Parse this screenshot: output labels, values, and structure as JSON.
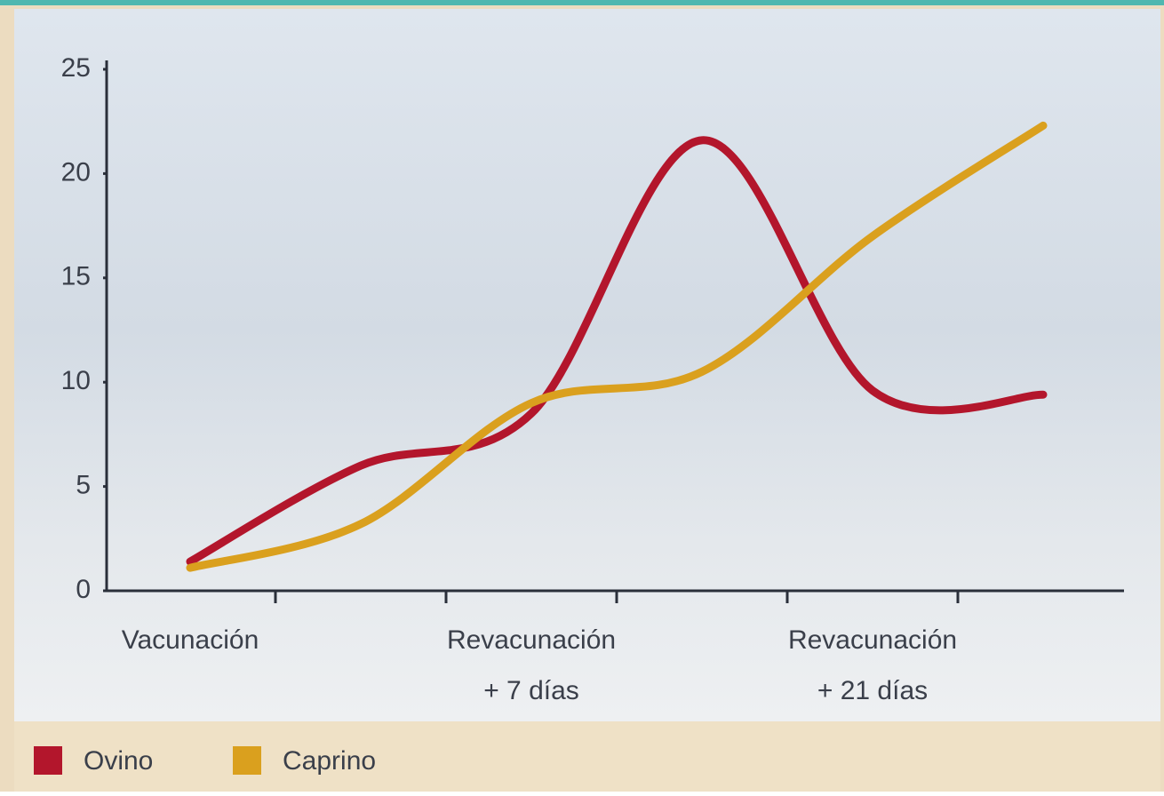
{
  "chart_data": {
    "type": "line",
    "categories": [
      [
        "Vacunación"
      ],
      null,
      [
        "Revacunación",
        "+ 7 días"
      ],
      null,
      [
        "Revacunación",
        "+ 21 días"
      ],
      null
    ],
    "series": [
      {
        "name": "Ovino",
        "color": "#b3162c",
        "values": [
          1.4,
          6.0,
          8.5,
          21.6,
          9.6,
          9.4
        ]
      },
      {
        "name": "Caprino",
        "color": "#daa01e",
        "values": [
          1.1,
          3.2,
          9.0,
          10.5,
          17.0,
          22.3
        ]
      }
    ],
    "ylim": [
      0,
      25
    ],
    "yticks": [
      0,
      5,
      10,
      15,
      20,
      25
    ]
  }
}
